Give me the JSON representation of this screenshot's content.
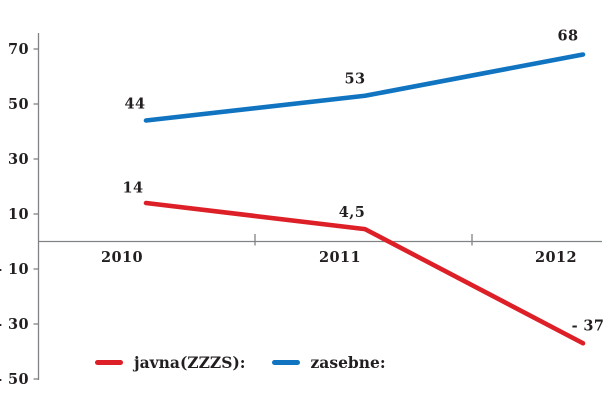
{
  "chart_data": {
    "type": "line",
    "categories": [
      "2010",
      "2011",
      "2012"
    ],
    "series": [
      {
        "name": "javna(ZZZS):",
        "values": [
          14,
          4.5,
          -37
        ],
        "point_labels": [
          "14",
          "4,5",
          "- 37"
        ],
        "color": "#dd2027"
      },
      {
        "name": "zasebne:",
        "values": [
          44,
          53,
          68
        ],
        "point_labels": [
          "44",
          "53",
          "68"
        ],
        "color": "#1074c1"
      }
    ],
    "title": "",
    "xlabel": "",
    "ylabel": "",
    "ylim": [
      -50,
      70
    ],
    "y_ticks": [
      70,
      50,
      30,
      10,
      -10,
      -30,
      -50
    ],
    "y_tick_labels": [
      "70",
      "50",
      "30",
      "10",
      "- 10",
      "- 30",
      "- 50"
    ],
    "grid": "off",
    "legend_position": "bottom"
  },
  "colors": {
    "red_series": "#dd2027",
    "blue_series": "#1074c1",
    "axis": "#808285",
    "text": "#231f20",
    "background": "#ffffff"
  }
}
